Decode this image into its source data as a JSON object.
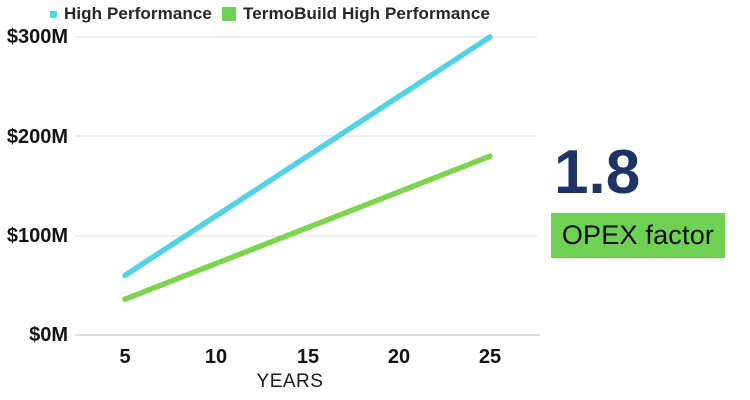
{
  "legend": {
    "items": [
      {
        "label": "High Performance",
        "color": "#53d1e5"
      },
      {
        "label": "TermoBuild High Performance",
        "color": "#6ed154"
      }
    ]
  },
  "chart_data": {
    "type": "line",
    "x": [
      5,
      10,
      15,
      20,
      25
    ],
    "x_ticks": [
      "5",
      "10",
      "15",
      "20",
      "25"
    ],
    "y_ticks": [
      "$0M",
      "$100M",
      "$200M",
      "$300M"
    ],
    "series": [
      {
        "name": "High Performance",
        "color": "#53d1e5",
        "values": [
          60,
          120,
          180,
          240,
          300
        ]
      },
      {
        "name": "TermoBuild High Performance",
        "color": "#7ed34f",
        "values": [
          36,
          72,
          108,
          144,
          180
        ]
      }
    ],
    "title": "",
    "xlabel": "YEARS",
    "ylabel": "",
    "ylim": [
      0,
      300
    ],
    "grid": true,
    "legend_position": "top",
    "grid_color": "#e8e8e8",
    "axis_color": "#dcdcdc"
  },
  "stat": {
    "value": "1.8",
    "label": "OPEX factor",
    "value_color": "#1e3366",
    "badge_color": "#6ed154"
  }
}
